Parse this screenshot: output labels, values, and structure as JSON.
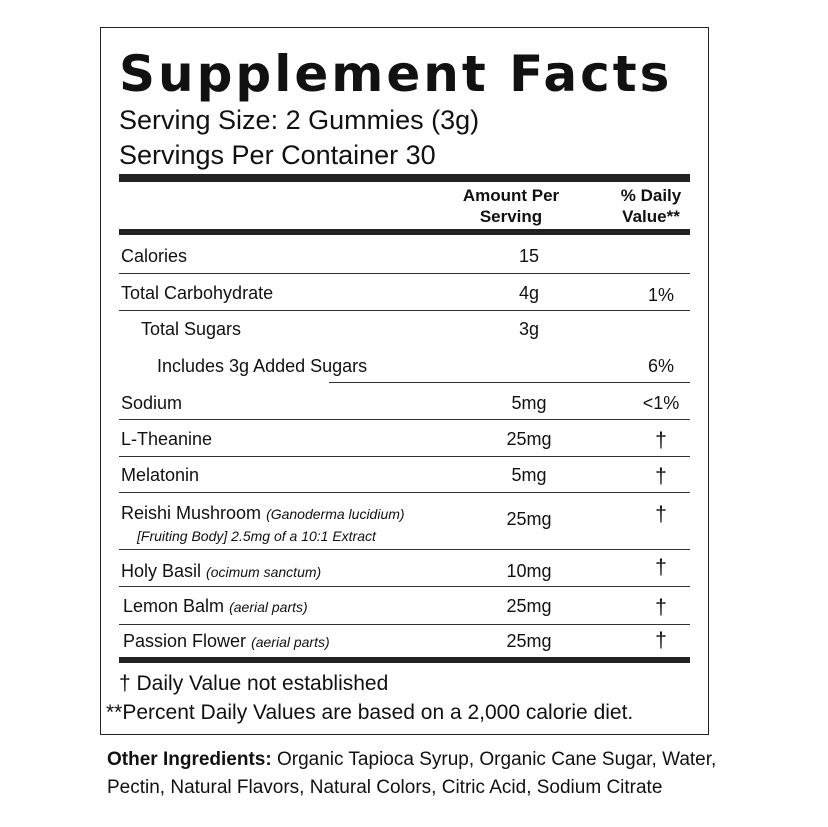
{
  "title": "Supplement Facts",
  "serving_size": "Serving Size: 2 Gummies (3g)",
  "servings_per_container": "Servings Per Container 30",
  "header": {
    "amount": "Amount Per Serving",
    "daily_value": "% Daily Value**"
  },
  "rows": [
    {
      "name": "Calories",
      "amount": "15",
      "dv": ""
    },
    {
      "name": "Total Carbohydrate",
      "amount": "4g",
      "dv": "1%"
    },
    {
      "name": "Total Sugars",
      "amount": "3g",
      "dv": ""
    },
    {
      "name": "Includes 3g Added Sugars",
      "amount": "",
      "dv": "6%"
    },
    {
      "name": "Sodium",
      "amount": "5mg",
      "dv": "<1%"
    },
    {
      "name": "L-Theanine",
      "amount": "25mg",
      "dv": "†"
    },
    {
      "name": "Melatonin",
      "amount": "5mg",
      "dv": "†"
    },
    {
      "name": "Reishi Mushroom",
      "latin": "(Ganoderma lucidium)",
      "detail": "[Fruiting Body] 2.5mg of a 10:1 Extract",
      "amount": "25mg",
      "dv": "†"
    },
    {
      "name": "Holy Basil",
      "latin": "(ocimum sanctum)",
      "amount": "10mg",
      "dv": "†"
    },
    {
      "name": "Lemon Balm",
      "latin": "(aerial parts)",
      "amount": "25mg",
      "dv": "†"
    },
    {
      "name": "Passion Flower",
      "latin": "(aerial parts)",
      "amount": "25mg",
      "dv": "†"
    }
  ],
  "footnotes": {
    "dagger": "† Daily Value not established",
    "percent": "**Percent Daily Values are based on a 2,000 calorie diet."
  },
  "other_ingredients": {
    "label": "Other Ingredients:",
    "text": "Organic Tapioca Syrup, Organic Cane Sugar, Water, Pectin, Natural Flavors, Natural Colors, Citric Acid, Sodium Citrate"
  }
}
